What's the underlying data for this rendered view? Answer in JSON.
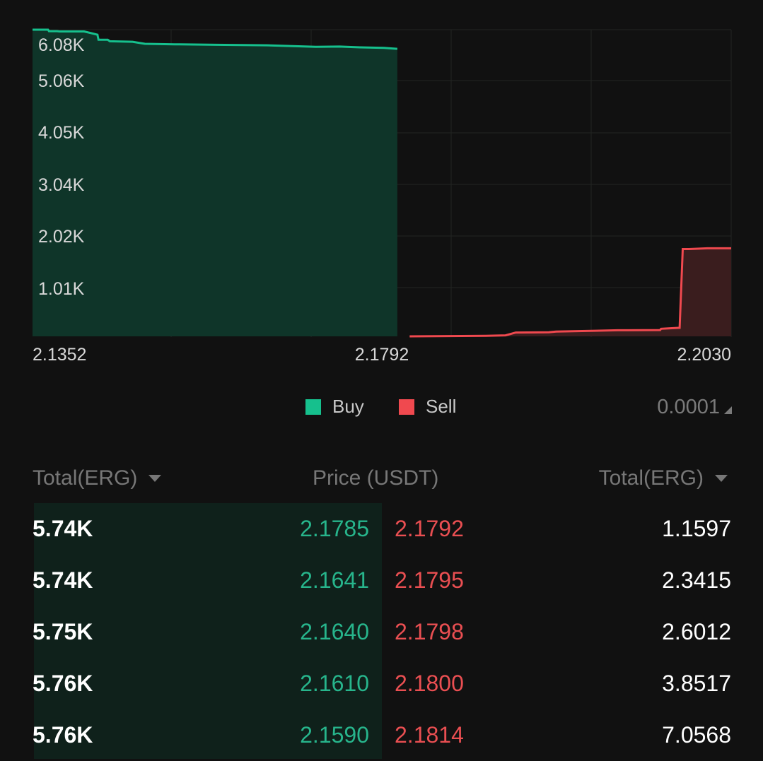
{
  "colors": {
    "buy": "#16c08d",
    "sell": "#f0494f",
    "background": "#111111"
  },
  "chart_data": {
    "type": "area",
    "y_ticks": [
      "6.08K",
      "5.06K",
      "4.05K",
      "3.04K",
      "2.02K",
      "1.01K"
    ],
    "x_ticks": [
      "2.1352",
      "2.1792",
      "2.2030"
    ],
    "xlim": [
      2.1352,
      2.203
    ],
    "ylim": [
      0,
      6080
    ],
    "series": [
      {
        "name": "Buy",
        "x": [
          2.1352,
          2.1367,
          2.1368,
          2.1376,
          2.1378,
          2.1402,
          2.1415,
          2.1416,
          2.1425,
          2.1427,
          2.1449,
          2.1461,
          2.149,
          2.153,
          2.158,
          2.1627,
          2.165,
          2.167,
          2.1693,
          2.1706
        ],
        "y": [
          6080,
          6080,
          6050,
          6050,
          6045,
          6045,
          5980,
          5880,
          5880,
          5850,
          5840,
          5800,
          5790,
          5780,
          5770,
          5740,
          5745,
          5730,
          5720,
          5700
        ]
      },
      {
        "name": "Sell",
        "x": [
          2.1718,
          2.1792,
          2.1811,
          2.1821,
          2.1853,
          2.186,
          2.1898,
          2.192,
          2.1961,
          2.1962,
          2.198,
          2.1983,
          2.1989,
          2.2007,
          2.203
        ],
        "y": [
          0,
          10,
          20,
          75,
          80,
          95,
          110,
          120,
          125,
          150,
          170,
          1730,
          1730,
          1745,
          1745
        ]
      }
    ]
  },
  "legend": {
    "buy": "Buy",
    "sell": "Sell",
    "precision": "0.0001"
  },
  "table": {
    "headers": {
      "left": "Total(ERG)",
      "center": "Price (USDT)",
      "right": "Total(ERG)"
    },
    "rows": [
      {
        "buy_total": "5.74K",
        "bid": "2.1785",
        "ask": "2.1792",
        "sell_total": "1.1597"
      },
      {
        "buy_total": "5.74K",
        "bid": "2.1641",
        "ask": "2.1795",
        "sell_total": "2.3415"
      },
      {
        "buy_total": "5.75K",
        "bid": "2.1640",
        "ask": "2.1798",
        "sell_total": "2.6012"
      },
      {
        "buy_total": "5.76K",
        "bid": "2.1610",
        "ask": "2.1800",
        "sell_total": "3.8517"
      },
      {
        "buy_total": "5.76K",
        "bid": "2.1590",
        "ask": "2.1814",
        "sell_total": "7.0568"
      }
    ]
  }
}
